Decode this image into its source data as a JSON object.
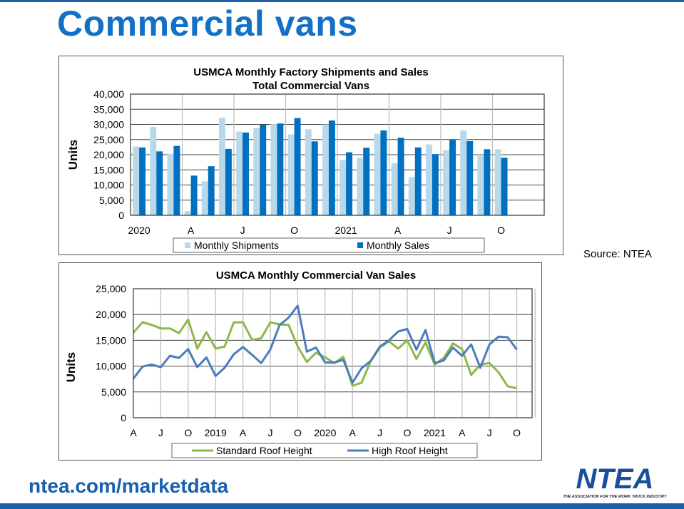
{
  "slide": {
    "title": "Commercial vans",
    "source": "Source: NTEA",
    "url": "ntea.com/marketdata",
    "logo_text": "NTEA",
    "logo_tagline": "THE ASSOCIATION FOR THE WORK TRUCK INDUSTRY"
  },
  "colors": {
    "brand": "#1270c6",
    "shipments": "#b9d9ea",
    "sales": "#0070c0",
    "standard": "#8db84a",
    "high": "#4a7ebb"
  },
  "chart_data": [
    {
      "type": "bar",
      "title": "USMCA Monthly Factory Shipments and Sales",
      "subtitle": "Total Commercial Vans",
      "ylabel": "Units",
      "xlabel": "",
      "ylim": [
        0,
        40000
      ],
      "yticks": [
        "0",
        "5,000",
        "10,000",
        "15,000",
        "20,000",
        "25,000",
        "30,000",
        "35,000",
        "40,000"
      ],
      "xtick_labels": [
        {
          "index": 0,
          "label": "2020"
        },
        {
          "index": 3,
          "label": "A"
        },
        {
          "index": 6,
          "label": "J"
        },
        {
          "index": 9,
          "label": "O"
        },
        {
          "index": 12,
          "label": "2021"
        },
        {
          "index": 15,
          "label": "A"
        },
        {
          "index": 18,
          "label": "J"
        },
        {
          "index": 21,
          "label": "O"
        }
      ],
      "slots": 24,
      "categories": [
        "Jan 2020",
        "Feb 2020",
        "Mar 2020",
        "Apr 2020",
        "May 2020",
        "Jun 2020",
        "Jul 2020",
        "Aug 2020",
        "Sep 2020",
        "Oct 2020",
        "Nov 2020",
        "Dec 2020",
        "Jan 2021",
        "Feb 2021",
        "Mar 2021",
        "Apr 2021",
        "May 2021",
        "Jun 2021",
        "Jul 2021",
        "Aug 2021",
        "Sep 2021",
        "Oct 2021"
      ],
      "series": [
        {
          "name": "Monthly Shipments",
          "values": [
            22700,
            29200,
            20300,
            1400,
            11200,
            32200,
            27600,
            28800,
            30100,
            26700,
            28400,
            30000,
            18200,
            19000,
            26900,
            17200,
            12600,
            23400,
            21500,
            28000,
            20000,
            21800
          ]
        },
        {
          "name": "Monthly  Sales",
          "values": [
            22400,
            21100,
            22900,
            13100,
            16200,
            21900,
            27300,
            29900,
            30300,
            32100,
            24400,
            31300,
            20800,
            22300,
            28000,
            25600,
            22400,
            20200,
            24900,
            24500,
            21800,
            19000
          ]
        }
      ],
      "grid": true,
      "legend": "bottom"
    },
    {
      "type": "line",
      "title": "USMCA Monthly Commercial Van Sales",
      "ylabel": "Units",
      "xlabel": "",
      "ylim": [
        0,
        25000
      ],
      "yticks": [
        "0",
        "5,000",
        "10,000",
        "15,000",
        "20,000",
        "25,000"
      ],
      "xtick_labels": [
        {
          "index": 0,
          "label": "A"
        },
        {
          "index": 3,
          "label": "J"
        },
        {
          "index": 6,
          "label": "O"
        },
        {
          "index": 9,
          "label": "2019"
        },
        {
          "index": 12,
          "label": "A"
        },
        {
          "index": 15,
          "label": "J"
        },
        {
          "index": 18,
          "label": "O"
        },
        {
          "index": 21,
          "label": "2020"
        },
        {
          "index": 24,
          "label": "A"
        },
        {
          "index": 27,
          "label": "J"
        },
        {
          "index": 30,
          "label": "O"
        },
        {
          "index": 33,
          "label": "2021"
        },
        {
          "index": 36,
          "label": "A"
        },
        {
          "index": 39,
          "label": "J"
        },
        {
          "index": 42,
          "label": "O"
        }
      ],
      "x_start": "Apr 2018",
      "x_end": "Oct 2021",
      "series": [
        {
          "name": "Standard Roof Height",
          "values": [
            16500,
            18500,
            18000,
            17300,
            17300,
            16400,
            19000,
            13400,
            16600,
            13400,
            13800,
            18500,
            18500,
            15100,
            15400,
            18500,
            18100,
            18000,
            13800,
            10800,
            12600,
            11700,
            10600,
            11800,
            6200,
            6800,
            11000,
            13600,
            14800,
            13400,
            15000,
            11400,
            14600,
            10300,
            11600,
            14400,
            13300,
            8300,
            10300,
            10600,
            8800,
            6100,
            5700
          ]
        },
        {
          "name": "High Roof Height",
          "values": [
            7600,
            9900,
            10300,
            9800,
            12000,
            11600,
            13300,
            9800,
            11700,
            8100,
            9700,
            12300,
            13700,
            12200,
            10600,
            13200,
            17900,
            19400,
            21700,
            12800,
            13600,
            10700,
            10700,
            11200,
            6800,
            9600,
            11000,
            13800,
            15000,
            16700,
            17200,
            13200,
            17000,
            10600,
            11100,
            13600,
            12000,
            14200,
            9700,
            14200,
            15700,
            15600,
            13200
          ]
        }
      ],
      "grid": true,
      "legend": "bottom"
    }
  ]
}
